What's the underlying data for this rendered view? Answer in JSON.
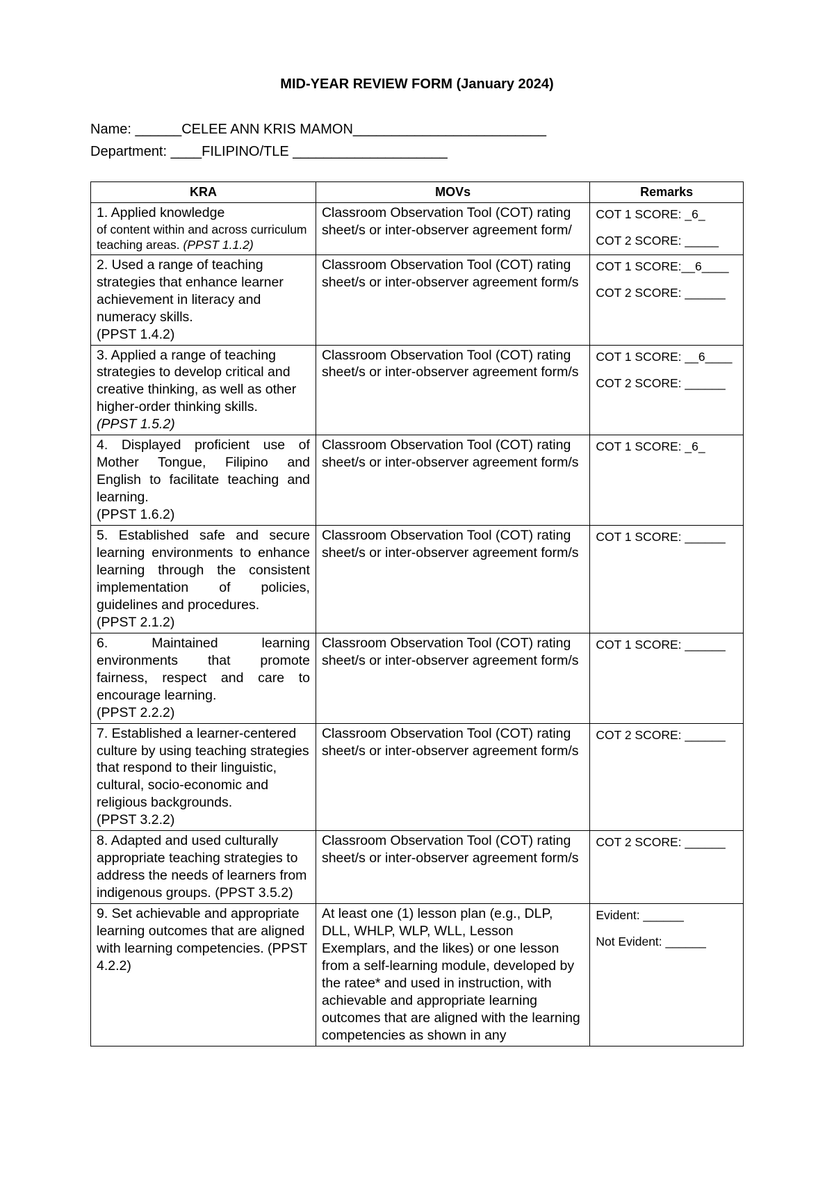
{
  "title": "MID-YEAR REVIEW FORM (January 2024)",
  "name_label": "Name: ______",
  "name_value": "CELEE ANN KRIS MAMON",
  "name_trail": "_________________________",
  "dept_label": "Department: ____",
  "dept_value": "FILIPINO/TLE ",
  "dept_trail": "____________________",
  "columns": {
    "kra": "KRA",
    "movs": "MOVs",
    "remarks": "Remarks"
  },
  "rows": [
    {
      "kra_main": "1. Applied knowledge",
      "kra_sub": "of content within and across curriculum teaching areas.",
      "ppst": " (PPST 1.1.2)",
      "kra_justify": false,
      "sub_small": true,
      "movs": "Classroom Observation Tool (COT) rating sheet/s or inter-observer agreement form/",
      "remarks": [
        "COT 1 SCORE: _6_",
        "",
        "COT 2 SCORE: _____"
      ]
    },
    {
      "kra_main": "2. Used a range of teaching strategies that enhance learner achievement in literacy and numeracy skills.",
      "ppst": "(PPST 1.4.2)",
      "ppst_newline": true,
      "movs": "Classroom Observation Tool (COT) rating sheet/s or inter-observer agreement form/s",
      "remarks": [
        "COT 1 SCORE:__6____",
        "",
        "COT 2 SCORE: ______"
      ]
    },
    {
      "kra_main": "3. Applied a range of teaching strategies to develop critical and creative thinking, as well as other higher-order thinking skills.",
      "ppst": "(PPST 1.5.2)",
      "ppst_newline": true,
      "ppst_italic": true,
      "movs": "Classroom Observation Tool (COT) rating sheet/s or inter-observer agreement form/s",
      "remarks": [
        "COT 1 SCORE: __6____",
        "",
        "COT 2 SCORE: ______"
      ]
    },
    {
      "kra_main": "4. Displayed proficient use of Mother Tongue, Filipino and English to facilitate teaching and learning.",
      "kra_justify": true,
      "ppst": "(PPST 1.6.2)",
      "ppst_newline": true,
      "movs": "Classroom Observation Tool (COT) rating sheet/s or inter-observer agreement form/s",
      "remarks": [
        "COT 1 SCORE: _6_"
      ]
    },
    {
      "kra_main": "5. Established safe and secure learning environments to enhance learning through the consistent implementation of policies, guidelines and procedures.",
      "kra_justify": true,
      "ppst": "(PPST 2.1.2)",
      "ppst_newline": true,
      "movs": "Classroom Observation Tool (COT) rating sheet/s or inter-observer agreement form/s",
      "remarks": [
        "COT 1 SCORE: ______"
      ]
    },
    {
      "kra_main": "6. Maintained learning environments that promote fairness, respect and care to encourage learning.",
      "kra_justify": true,
      "ppst": "(PPST 2.2.2)",
      "ppst_newline": true,
      "movs": "Classroom Observation Tool (COT) rating sheet/s or inter-observer agreement form/s",
      "remarks": [
        "COT 1 SCORE: ______"
      ]
    },
    {
      "kra_main": "7. Established a learner-centered culture by using teaching strategies that respond to their linguistic, cultural, socio-economic and religious backgrounds.",
      "ppst": "(PPST 3.2.2)",
      "ppst_newline": true,
      "movs": "Classroom Observation Tool (COT) rating sheet/s or inter-observer agreement form/s",
      "remarks": [
        "COT 2 SCORE: ______"
      ]
    },
    {
      "kra_main": "8. Adapted and used culturally appropriate teaching strategies to address the needs of learners from indigenous groups. (PPST 3.5.2)",
      "movs": "Classroom Observation Tool (COT) rating sheet/s or inter-observer agreement form/s",
      "remarks": [
        "COT 2 SCORE: ______"
      ]
    },
    {
      "kra_main": "9. Set achievable and appropriate learning outcomes that are aligned with learning competencies. (PPST 4.2.2)",
      "movs": "At least one (1) lesson plan (e.g., DLP, DLL, WHLP, WLP, WLL, Lesson Exemplars, and the likes) or one lesson from a self-learning module, developed by the ratee* and used in instruction, with achievable and appropriate learning outcomes that are aligned with the learning competencies as shown in any",
      "remarks": [
        "Evident: ______",
        "",
        "Not Evident: ______"
      ]
    }
  ]
}
